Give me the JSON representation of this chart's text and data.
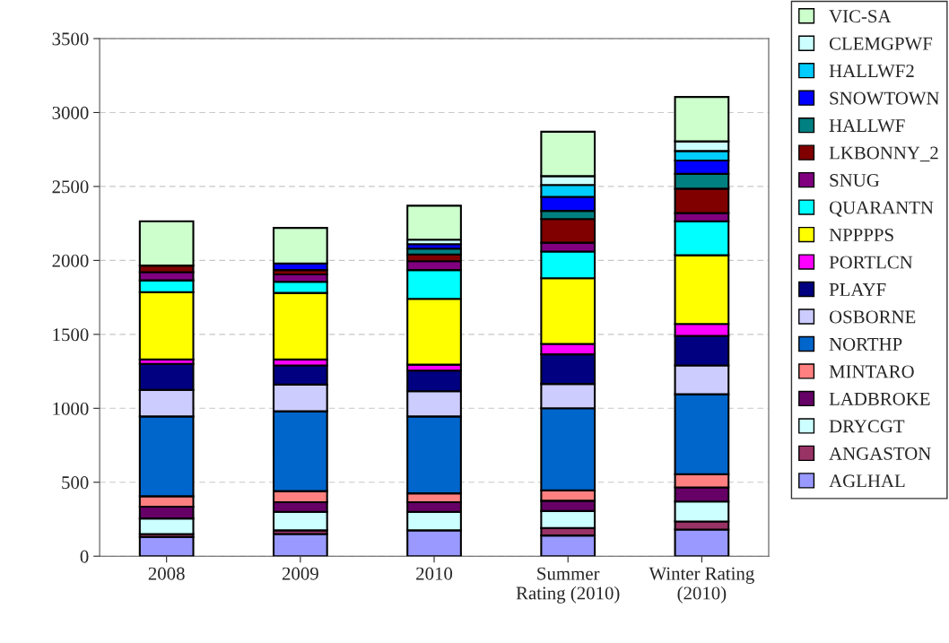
{
  "chart_data": {
    "type": "bar",
    "stacked": true,
    "categories": [
      "2008",
      "2009",
      "2010",
      "Summer\nRating (2010)",
      "Winter Rating\n(2010)"
    ],
    "ylim": [
      0,
      3500
    ],
    "yticks": [
      0,
      500,
      1000,
      1500,
      2000,
      2500,
      3000,
      3500
    ],
    "grid": "y",
    "legend": "right",
    "series": [
      {
        "name": "AGLHAL",
        "color": "#9999ff",
        "values": [
          130,
          150,
          175,
          140,
          180
        ]
      },
      {
        "name": "ANGASTON",
        "color": "#993366",
        "values": [
          20,
          25,
          null,
          50,
          55
        ]
      },
      {
        "name": "DRYCGT",
        "color": "#ccffff",
        "values": [
          105,
          125,
          125,
          115,
          135
        ]
      },
      {
        "name": "LADBROKE",
        "color": "#660066",
        "values": [
          80,
          65,
          65,
          70,
          95
        ]
      },
      {
        "name": "MINTARO",
        "color": "#ff8080",
        "values": [
          70,
          75,
          60,
          70,
          90
        ]
      },
      {
        "name": "NORTHP",
        "color": "#0066cc",
        "values": [
          540,
          540,
          520,
          555,
          540
        ]
      },
      {
        "name": "OSBORNE",
        "color": "#ccccff",
        "values": [
          180,
          180,
          170,
          165,
          195
        ]
      },
      {
        "name": "PLAYF",
        "color": "#000080",
        "values": [
          175,
          130,
          140,
          200,
          200
        ]
      },
      {
        "name": "PORTLCN",
        "color": "#ff00ff",
        "values": [
          30,
          40,
          40,
          70,
          80
        ]
      },
      {
        "name": "NPPPPS",
        "color": "#ffff00",
        "values": [
          455,
          450,
          445,
          445,
          465
        ]
      },
      {
        "name": "QUARANTN",
        "color": "#00ffff",
        "values": [
          80,
          75,
          195,
          180,
          230
        ]
      },
      {
        "name": "SNUG",
        "color": "#800080",
        "values": [
          55,
          50,
          60,
          60,
          55
        ]
      },
      {
        "name": "LKBONNY_2",
        "color": "#800000",
        "values": [
          45,
          30,
          45,
          160,
          165
        ]
      },
      {
        "name": "HALLWF",
        "color": "#008080",
        "values": [
          null,
          null,
          40,
          55,
          100
        ]
      },
      {
        "name": "SNOWTOWN",
        "color": "#0000ff",
        "values": [
          null,
          45,
          30,
          95,
          90
        ]
      },
      {
        "name": "HALLWF2",
        "color": "#00ccff",
        "values": [
          null,
          null,
          null,
          80,
          65
        ]
      },
      {
        "name": "CLEMGPWF",
        "color": "#ccffff",
        "values": [
          null,
          null,
          30,
          60,
          65
        ]
      },
      {
        "name": "VIC-SA",
        "color": "#ccffcc",
        "values": [
          300,
          240,
          230,
          300,
          300
        ]
      }
    ]
  }
}
